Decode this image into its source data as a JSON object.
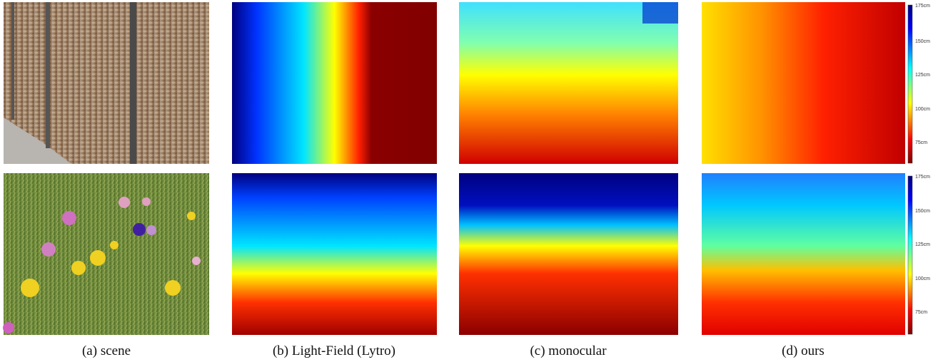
{
  "captions": [
    "(a) scene",
    "(b) Light-Field (Lytro)",
    "(c) monocular",
    "(d) ours"
  ],
  "colorbars": [
    {
      "ticks": [
        "175cm",
        "150cm",
        "125cm",
        "100cm",
        "75cm"
      ]
    },
    {
      "ticks": [
        "175cm",
        "150cm",
        "125cm",
        "100cm",
        "75cm"
      ]
    }
  ]
}
